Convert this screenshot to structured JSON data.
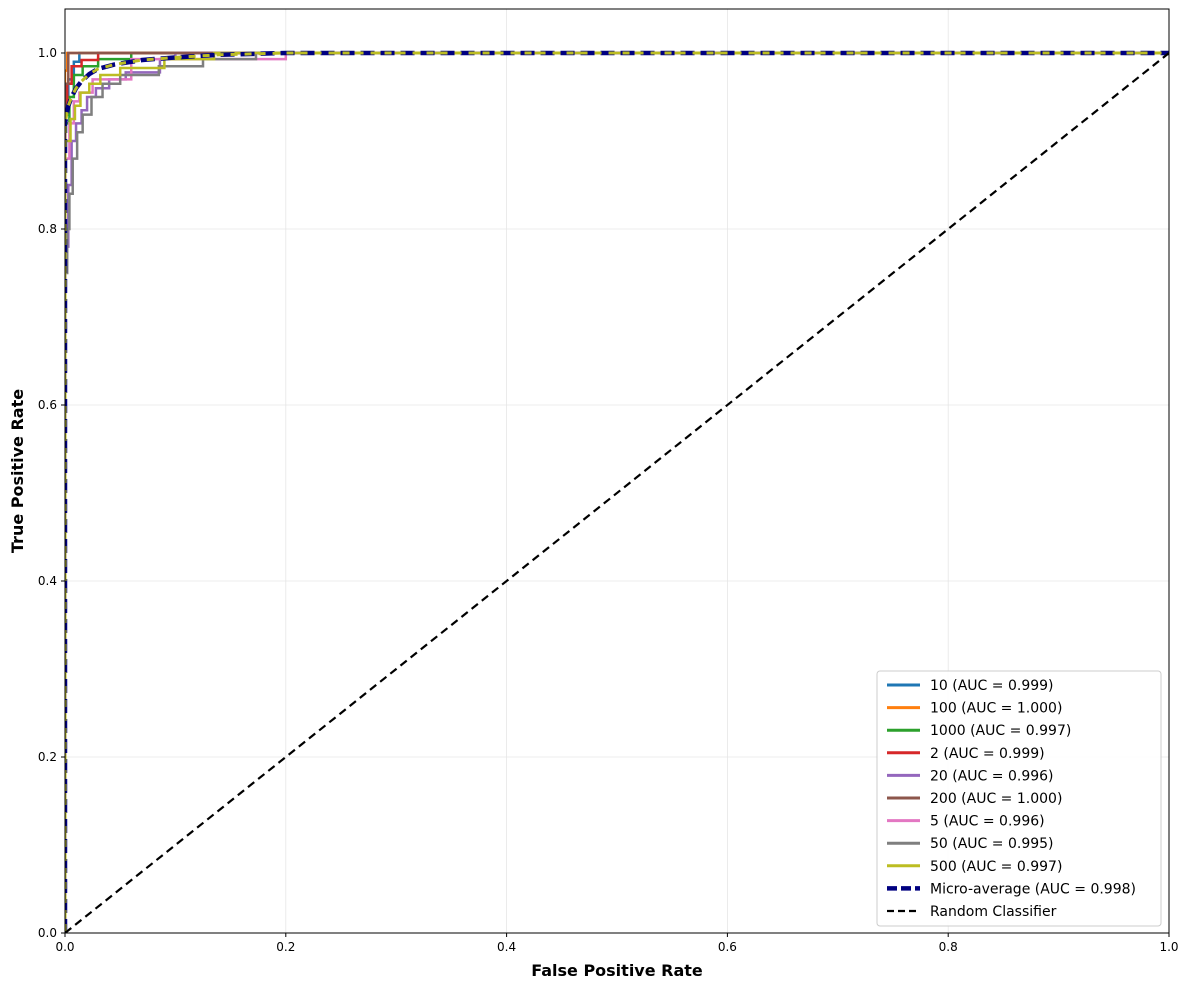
{
  "chart_data": {
    "type": "line",
    "title": "",
    "xlabel": "False Positive Rate",
    "ylabel": "True Positive Rate",
    "xlim": [
      0.0,
      1.0
    ],
    "ylim": [
      0.0,
      1.05
    ],
    "xticks": [
      "0.0",
      "0.2",
      "0.4",
      "0.6",
      "0.8",
      "1.0"
    ],
    "yticks": [
      "0.0",
      "0.2",
      "0.4",
      "0.6",
      "0.8",
      "1.0"
    ],
    "grid": true,
    "legend_position": "lower-right",
    "series": [
      {
        "name": "10 (AUC = 0.999)",
        "color": "#1f77b4",
        "style": "solid",
        "x": [
          0.0,
          0.0,
          0.003,
          0.003,
          0.008,
          0.008,
          0.013,
          0.013,
          1.0
        ],
        "y": [
          0.0,
          0.93,
          0.93,
          0.97,
          0.97,
          0.99,
          0.99,
          1.0,
          1.0
        ]
      },
      {
        "name": "100 (AUC = 1.000)",
        "color": "#ff7f0e",
        "style": "solid",
        "x": [
          0.0,
          0.0,
          0.002,
          0.002,
          1.0
        ],
        "y": [
          0.0,
          0.98,
          0.98,
          1.0,
          1.0
        ]
      },
      {
        "name": "1000 (AUC = 0.997)",
        "color": "#2ca02c",
        "style": "solid",
        "x": [
          0.0,
          0.0,
          0.004,
          0.004,
          0.008,
          0.008,
          0.016,
          0.016,
          0.03,
          0.03,
          0.06,
          0.06,
          1.0
        ],
        "y": [
          0.0,
          0.92,
          0.92,
          0.95,
          0.95,
          0.975,
          0.975,
          0.985,
          0.985,
          0.993,
          0.993,
          1.0,
          1.0
        ]
      },
      {
        "name": "2 (AUC = 0.999)",
        "color": "#d62728",
        "style": "solid",
        "x": [
          0.0,
          0.0,
          0.002,
          0.002,
          0.006,
          0.006,
          0.015,
          0.015,
          0.03,
          0.03,
          1.0
        ],
        "y": [
          0.0,
          0.94,
          0.94,
          0.965,
          0.965,
          0.985,
          0.985,
          0.992,
          0.992,
          1.0,
          1.0
        ]
      },
      {
        "name": "20 (AUC = 0.996)",
        "color": "#9467bd",
        "style": "solid",
        "x": [
          0.0,
          0.0,
          0.003,
          0.003,
          0.006,
          0.006,
          0.01,
          0.01,
          0.015,
          0.015,
          0.02,
          0.02,
          0.028,
          0.028,
          0.04,
          0.04,
          0.055,
          0.055,
          0.086,
          0.086,
          0.1,
          0.1,
          1.0
        ],
        "y": [
          0.0,
          0.78,
          0.78,
          0.85,
          0.85,
          0.9,
          0.9,
          0.92,
          0.92,
          0.935,
          0.935,
          0.95,
          0.95,
          0.96,
          0.96,
          0.97,
          0.97,
          0.978,
          0.978,
          0.993,
          0.993,
          1.0,
          1.0
        ]
      },
      {
        "name": "200 (AUC = 1.000)",
        "color": "#8c564b",
        "style": "solid",
        "x": [
          0.0,
          0.0,
          0.003,
          0.003,
          1.0
        ],
        "y": [
          0.0,
          0.965,
          0.965,
          1.0,
          1.0
        ]
      },
      {
        "name": "5 (AUC = 0.996)",
        "color": "#e377c2",
        "style": "solid",
        "x": [
          0.0,
          0.0,
          0.004,
          0.004,
          0.008,
          0.008,
          0.013,
          0.013,
          0.025,
          0.025,
          0.06,
          0.06,
          0.2,
          0.2,
          1.0
        ],
        "y": [
          0.0,
          0.88,
          0.88,
          0.92,
          0.92,
          0.945,
          0.945,
          0.955,
          0.955,
          0.97,
          0.97,
          0.993,
          0.993,
          1.0,
          1.0
        ]
      },
      {
        "name": "50 (AUC = 0.995)",
        "color": "#7f7f7f",
        "style": "solid",
        "x": [
          0.0,
          0.0,
          0.002,
          0.002,
          0.004,
          0.004,
          0.007,
          0.007,
          0.011,
          0.011,
          0.016,
          0.016,
          0.024,
          0.024,
          0.034,
          0.034,
          0.05,
          0.05,
          0.085,
          0.085,
          0.125,
          0.125,
          0.173,
          0.173,
          1.0
        ],
        "y": [
          0.0,
          0.75,
          0.75,
          0.8,
          0.8,
          0.84,
          0.84,
          0.88,
          0.88,
          0.91,
          0.91,
          0.93,
          0.93,
          0.95,
          0.95,
          0.965,
          0.965,
          0.975,
          0.975,
          0.985,
          0.985,
          0.993,
          0.993,
          1.0,
          1.0
        ]
      },
      {
        "name": "500 (AUC = 0.997)",
        "color": "#bcbd22",
        "style": "solid",
        "x": [
          0.0,
          0.0,
          0.005,
          0.005,
          0.009,
          0.009,
          0.014,
          0.014,
          0.022,
          0.022,
          0.032,
          0.032,
          0.05,
          0.05,
          0.09,
          0.09,
          0.135,
          0.135,
          1.0
        ],
        "y": [
          0.0,
          0.9,
          0.9,
          0.925,
          0.925,
          0.94,
          0.94,
          0.955,
          0.955,
          0.965,
          0.965,
          0.975,
          0.975,
          0.983,
          0.983,
          0.993,
          0.993,
          1.0,
          1.0
        ]
      },
      {
        "name": "Micro-average (AUC = 0.998)",
        "color": "#000080",
        "style": "micro",
        "x": [
          0.0,
          0.0,
          0.003,
          0.006,
          0.01,
          0.015,
          0.022,
          0.03,
          0.045,
          0.07,
          0.1,
          0.14,
          0.2,
          1.0
        ],
        "y": [
          0.0,
          0.92,
          0.94,
          0.95,
          0.96,
          0.968,
          0.976,
          0.982,
          0.987,
          0.992,
          0.995,
          0.998,
          1.0,
          1.0
        ]
      },
      {
        "name": "Random Classifier",
        "color": "#000000",
        "style": "dashed",
        "x": [
          0.0,
          1.0
        ],
        "y": [
          0.0,
          1.0
        ]
      }
    ]
  }
}
